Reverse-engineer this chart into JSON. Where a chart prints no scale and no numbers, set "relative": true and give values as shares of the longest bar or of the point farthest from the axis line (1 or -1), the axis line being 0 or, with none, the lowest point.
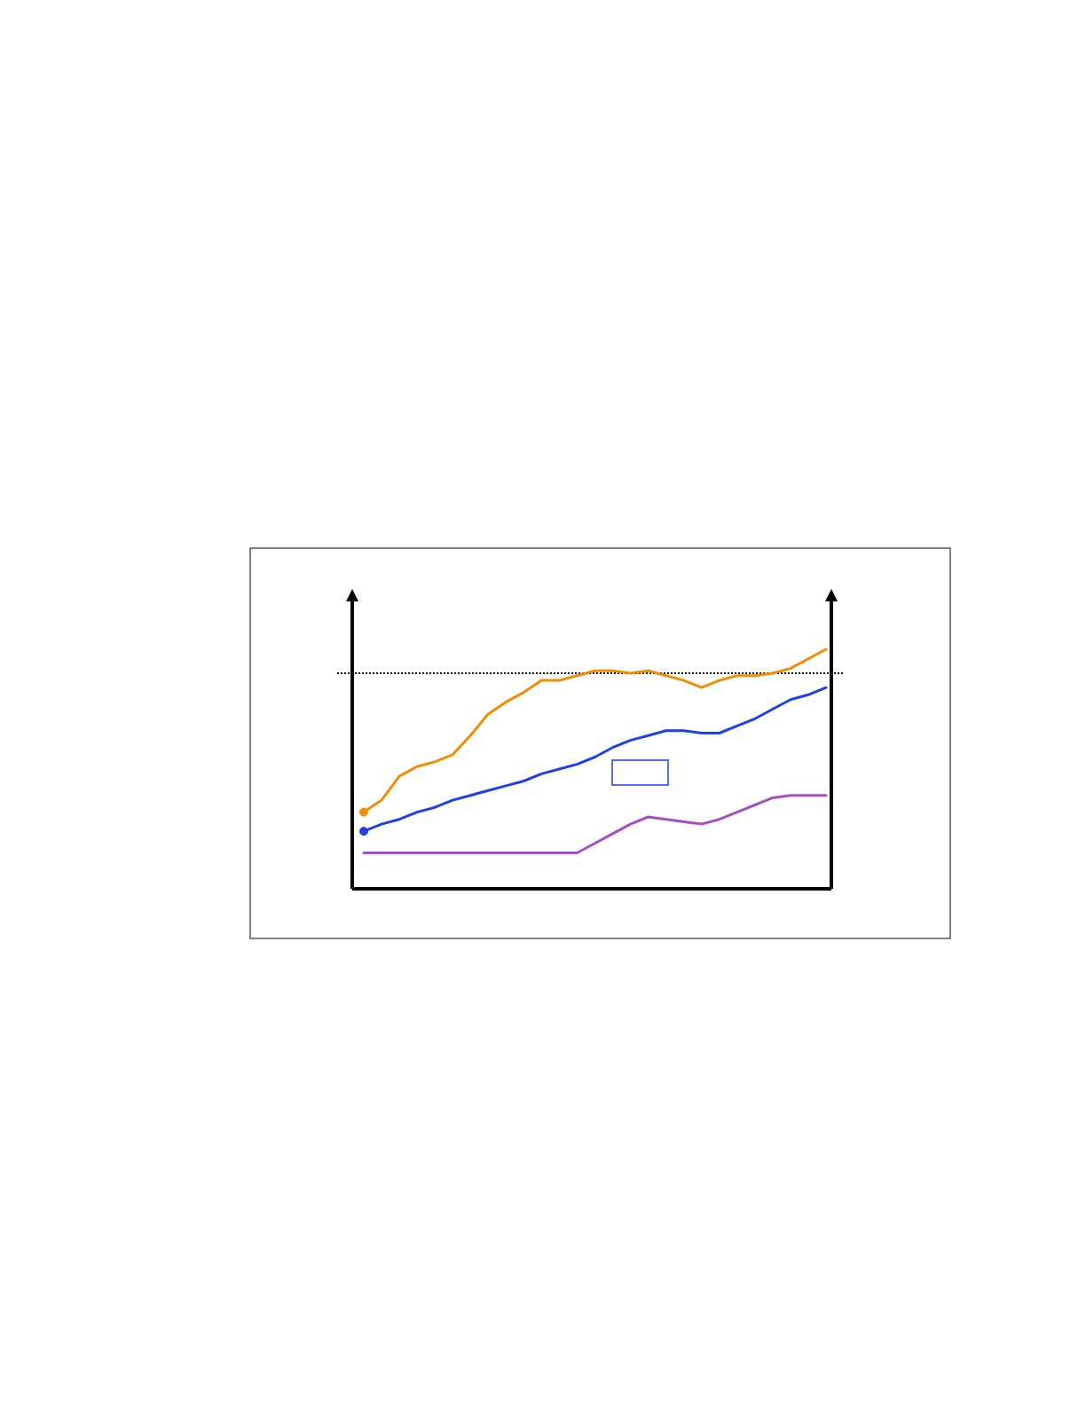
{
  "chart_data": {
    "type": "line",
    "relative": true,
    "categories": [
      null,
      null,
      null,
      null,
      null,
      null,
      null,
      null,
      null,
      null,
      null,
      null,
      null,
      null,
      null,
      null,
      null,
      null,
      null,
      null,
      null,
      null,
      null,
      null,
      null,
      null,
      null
    ],
    "series": [
      {
        "color": "#f28c00",
        "values": [
          0.32,
          0.37,
          0.47,
          0.51,
          0.53,
          0.56,
          0.64,
          0.73,
          0.78,
          0.82,
          0.87,
          0.87,
          0.89,
          0.91,
          0.91,
          0.9,
          0.91,
          0.89,
          0.87,
          0.84,
          0.87,
          0.89,
          0.89,
          0.9,
          0.92,
          0.96,
          1
        ]
      },
      {
        "color": "#1f3fe8",
        "values": [
          0.24,
          0.27,
          0.29,
          0.32,
          0.34,
          0.37,
          0.39,
          0.41,
          0.43,
          0.45,
          0.48,
          0.5,
          0.52,
          0.55,
          0.59,
          0.62,
          0.64,
          0.66,
          0.66,
          0.65,
          0.65,
          0.68,
          0.71,
          0.75,
          0.79,
          0.81,
          0.84
        ]
      },
      {
        "color": "#a64dc8",
        "values": [
          0.15,
          0.15,
          0.15,
          0.15,
          0.15,
          0.15,
          0.15,
          0.15,
          0.15,
          0.15,
          0.15,
          0.15,
          0.15,
          0.19,
          0.23,
          0.27,
          0.3,
          0.29,
          0.28,
          0.27,
          0.29,
          0.32,
          0.35,
          0.38,
          0.39,
          0.39,
          0.39
        ]
      }
    ],
    "ref_lines": [
      {
        "axis": "y",
        "value": 0.9,
        "color": "#000000",
        "line_style": "dotted"
      }
    ]
  }
}
